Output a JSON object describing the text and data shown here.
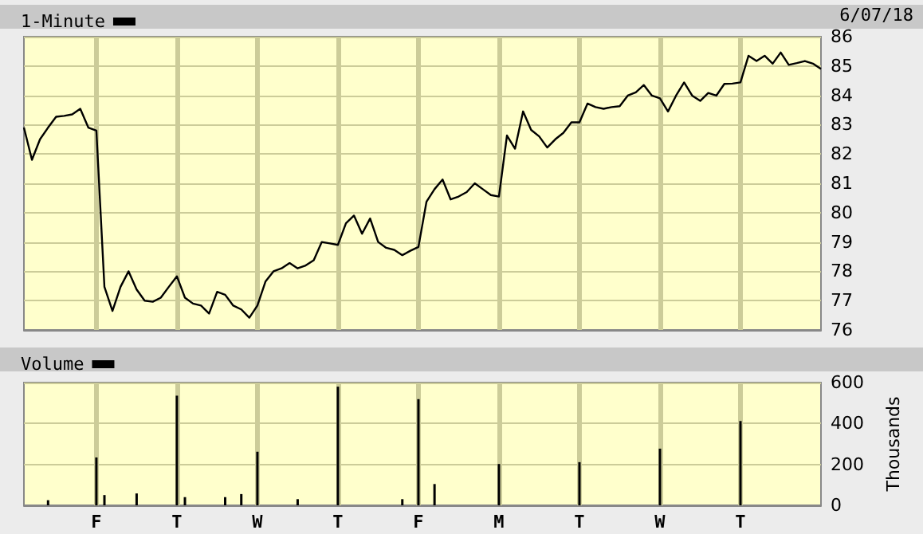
{
  "chart_data": [
    {
      "type": "line",
      "annotations": [
        "6/07/18"
      ],
      "legend": "top left",
      "grid": true,
      "tick_labels": "y",
      "categories": [
        null,
        null,
        null,
        null,
        null,
        null,
        null,
        null,
        null,
        null,
        null,
        null,
        null,
        null,
        null,
        null,
        null,
        null,
        null,
        null,
        null,
        null,
        null,
        null,
        null,
        null,
        null,
        null,
        null,
        null,
        null,
        null,
        null,
        null,
        null,
        null,
        null,
        null,
        null,
        null,
        null,
        null,
        null,
        null,
        null,
        null,
        null,
        null,
        null,
        null,
        null,
        null,
        null,
        null,
        null,
        null,
        null,
        null,
        null,
        null,
        null,
        null,
        null,
        null,
        null,
        null,
        null,
        null,
        null,
        null,
        null,
        null,
        null,
        null,
        null,
        null,
        null,
        null,
        null,
        null,
        null,
        null,
        null,
        null,
        null,
        null,
        null,
        null,
        null,
        null,
        null,
        null,
        null,
        null,
        null,
        null,
        null,
        null,
        null,
        null
      ],
      "ylim": [
        76,
        86
      ],
      "yticks": [
        76,
        77,
        78,
        79,
        80,
        81,
        82,
        83,
        84,
        85,
        86
      ],
      "series": [
        {
          "name": "1-Minute",
          "color": "#000000",
          "values": [
            82.9,
            81.8,
            82.5,
            82.9,
            83.27,
            83.3,
            83.35,
            83.54,
            82.9,
            82.8,
            77.47,
            76.65,
            77.47,
            78.0,
            77.38,
            77.0,
            76.96,
            77.1,
            77.47,
            77.83,
            77.1,
            76.9,
            76.83,
            76.56,
            77.3,
            77.2,
            76.83,
            76.7,
            76.42,
            76.83,
            77.65,
            78.0,
            78.1,
            78.28,
            78.1,
            78.2,
            78.38,
            79.0,
            78.95,
            78.9,
            79.64,
            79.9,
            79.28,
            79.8,
            79.0,
            78.8,
            78.73,
            78.55,
            78.7,
            78.83,
            80.37,
            80.8,
            81.13,
            80.45,
            80.55,
            80.7,
            81.0,
            80.8,
            80.6,
            80.55,
            82.63,
            82.18,
            83.45,
            82.82,
            82.6,
            82.22,
            82.5,
            82.72,
            83.08,
            83.08,
            83.72,
            83.6,
            83.54,
            83.6,
            83.63,
            83.99,
            84.1,
            84.35,
            83.99,
            83.9,
            83.45,
            83.99,
            84.44,
            83.99,
            83.81,
            84.08,
            83.99,
            84.39,
            84.4,
            84.44,
            85.35,
            85.17,
            85.35,
            85.08,
            85.46,
            85.04,
            85.1,
            85.17,
            85.08,
            84.9
          ]
        }
      ]
    },
    {
      "type": "bar",
      "ylabel": "Thousands",
      "legend": "top left",
      "grid": true,
      "categories": [
        null,
        null,
        null,
        null,
        null,
        null,
        null,
        null,
        null,
        "F",
        null,
        null,
        null,
        null,
        null,
        null,
        null,
        null,
        null,
        "T",
        null,
        null,
        null,
        null,
        null,
        null,
        null,
        null,
        null,
        "W",
        null,
        null,
        null,
        null,
        null,
        null,
        null,
        null,
        null,
        "T",
        null,
        null,
        null,
        null,
        null,
        null,
        null,
        null,
        null,
        "F",
        null,
        null,
        null,
        null,
        null,
        null,
        null,
        null,
        null,
        "M",
        null,
        null,
        null,
        null,
        null,
        null,
        null,
        null,
        null,
        "T",
        null,
        null,
        null,
        null,
        null,
        null,
        null,
        null,
        null,
        "W",
        null,
        null,
        null,
        null,
        null,
        null,
        null,
        null,
        null,
        "T",
        null,
        null,
        null,
        null,
        null,
        null,
        null,
        null,
        null,
        null
      ],
      "ylim": [
        0,
        600
      ],
      "yticks": [
        0,
        200,
        400,
        600
      ],
      "series": [
        {
          "name": "Volume",
          "color": "#000000",
          "values": [
            null,
            null,
            null,
            25,
            null,
            null,
            null,
            null,
            null,
            234,
            50,
            null,
            null,
            null,
            58,
            null,
            null,
            null,
            null,
            536,
            40,
            null,
            null,
            null,
            null,
            40,
            null,
            55,
            null,
            262,
            null,
            null,
            null,
            null,
            30,
            null,
            null,
            null,
            null,
            580,
            null,
            null,
            null,
            null,
            null,
            null,
            null,
            30,
            null,
            519,
            null,
            104,
            null,
            null,
            null,
            null,
            null,
            null,
            null,
            202,
            null,
            null,
            null,
            null,
            null,
            null,
            null,
            null,
            null,
            211,
            null,
            null,
            null,
            null,
            null,
            null,
            null,
            null,
            null,
            277,
            null,
            null,
            null,
            null,
            null,
            null,
            null,
            null,
            null,
            412,
            null,
            null,
            null,
            null,
            null,
            null,
            null,
            null,
            null,
            null
          ]
        }
      ]
    }
  ]
}
